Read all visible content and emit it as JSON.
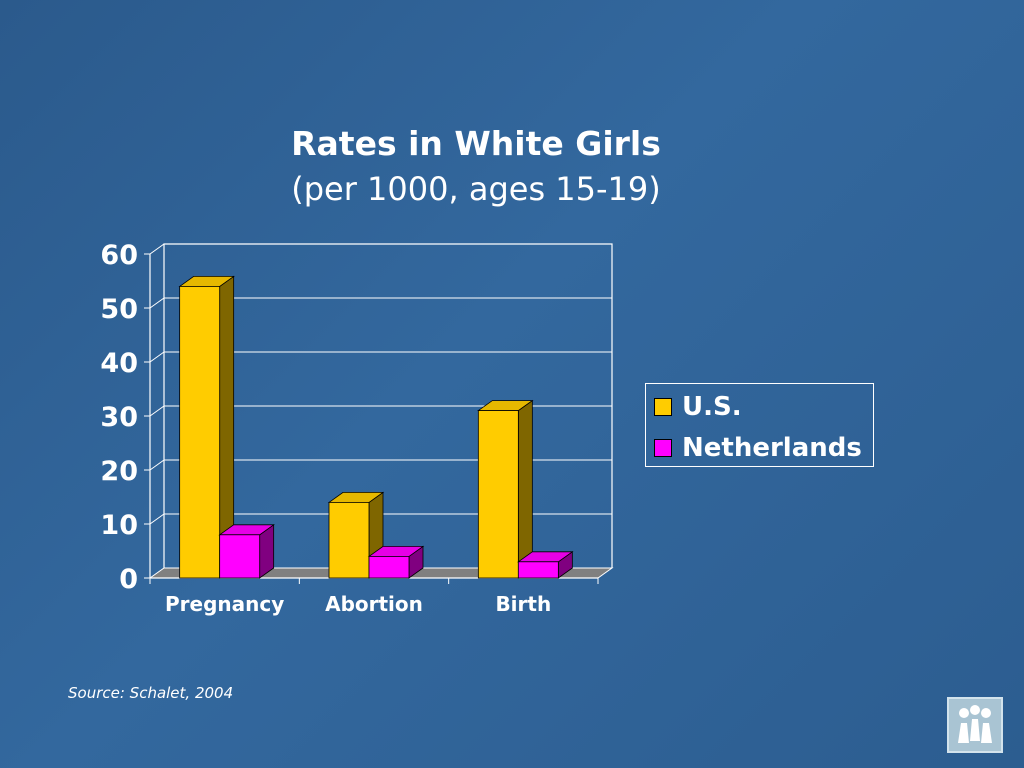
{
  "slide": {
    "title": "Rates in White Girls",
    "subtitle": "(per 1000, ages 15-19)",
    "source": "Source: Schalet, 2004",
    "logo_icon": "people-group-logo-icon"
  },
  "colors": {
    "background": "#30629a",
    "us": "#ffcc00",
    "us_side": "#7f6600",
    "netherlands": "#ff00ff",
    "netherlands_side": "#800080",
    "floor": "#808080",
    "gridline": "#ffffff"
  },
  "chart_data": {
    "type": "bar",
    "title": "Rates in White Girls",
    "subtitle": "(per 1000, ages 15-19)",
    "categories": [
      "Pregnancy",
      "Abortion",
      "Birth"
    ],
    "series": [
      {
        "name": "U.S.",
        "values": [
          54,
          14,
          31
        ]
      },
      {
        "name": "Netherlands",
        "values": [
          8,
          4,
          3
        ]
      }
    ],
    "yticks": [
      "0",
      "10",
      "20",
      "30",
      "40",
      "50",
      "60"
    ],
    "ylim": [
      0,
      60
    ],
    "grid": true,
    "legend_position": "right",
    "style": "3d-clustered-column"
  }
}
